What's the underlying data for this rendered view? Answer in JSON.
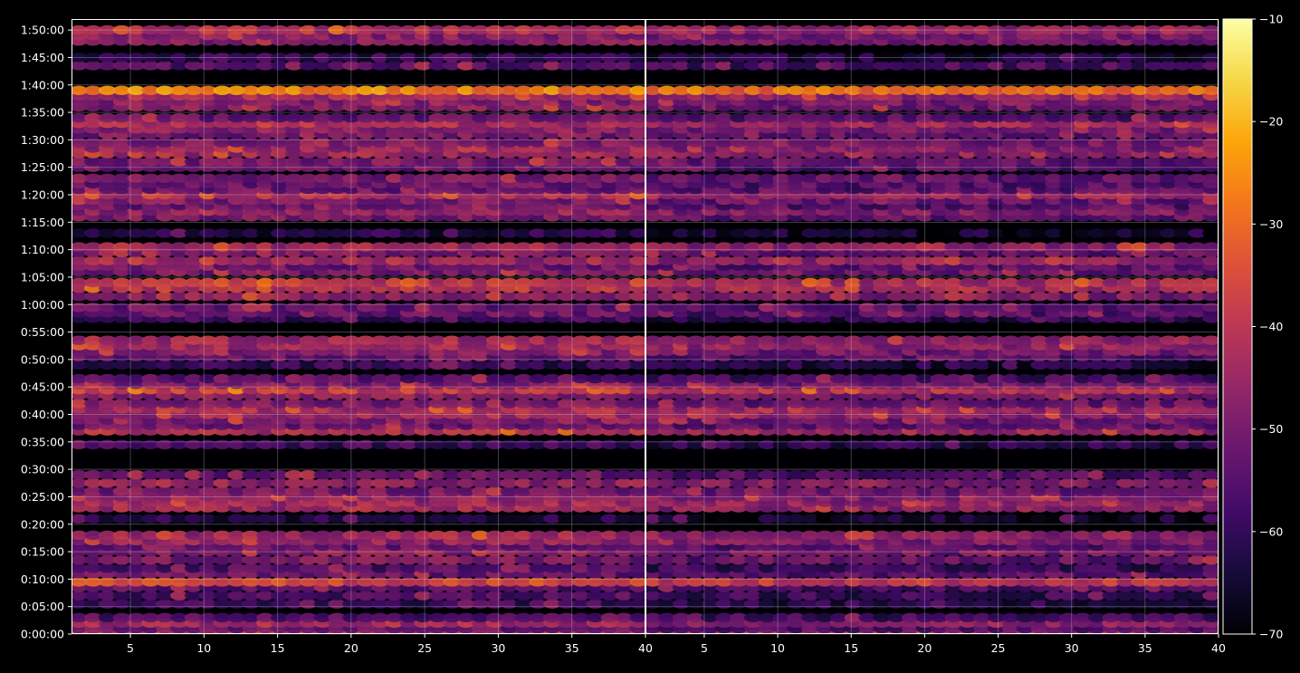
{
  "chart_data": {
    "type": "heatmap",
    "title": "",
    "xlabel": "",
    "ylabel": "",
    "panels": [
      {
        "name": "",
        "xlim": [
          1,
          40
        ],
        "x_ticks": [
          "5",
          "10",
          "15",
          "20",
          "25",
          "30",
          "35",
          "40"
        ],
        "x_tick_values": [
          5,
          10,
          15,
          20,
          25,
          30,
          35,
          40
        ]
      },
      {
        "name": "",
        "xlim": [
          1,
          40
        ],
        "x_ticks": [
          "5",
          "10",
          "15",
          "20",
          "25",
          "30",
          "35",
          "40"
        ],
        "x_tick_values": [
          5,
          10,
          15,
          20,
          25,
          30,
          35,
          40
        ]
      }
    ],
    "ylim_seconds": [
      0,
      6720
    ],
    "y_ticks": [
      "0:00:00",
      "0:05:00",
      "0:10:00",
      "0:15:00",
      "0:20:00",
      "0:25:00",
      "0:30:00",
      "0:35:00",
      "0:40:00",
      "0:45:00",
      "0:50:00",
      "0:55:00",
      "1:00:00",
      "1:05:00",
      "1:10:00",
      "1:15:00",
      "1:20:00",
      "1:25:00",
      "1:30:00",
      "1:35:00",
      "1:40:00",
      "1:45:00",
      "1:50:00"
    ],
    "grid": true,
    "colormap": "inferno",
    "colorbar": {
      "range": [
        -70,
        -10
      ],
      "ticks": [
        "−70",
        "−60",
        "−50",
        "−40",
        "−30",
        "−20",
        "−10"
      ],
      "tick_values": [
        -70,
        -60,
        -50,
        -40,
        -30,
        -20,
        -10
      ]
    },
    "bands_level_dB": [
      {
        "t": "0:00:00",
        "level": -38
      },
      {
        "t": "0:01:00",
        "level": -52
      },
      {
        "t": "0:02:00",
        "level": -44
      },
      {
        "t": "0:03:00",
        "level": -55
      },
      {
        "t": "0:05:30",
        "level": -58
      },
      {
        "t": "0:07:00",
        "level": -56
      },
      {
        "t": "0:08:30",
        "level": -54
      },
      {
        "t": "0:09:30",
        "level": -36
      },
      {
        "t": "0:11:00",
        "level": -52
      },
      {
        "t": "0:12:00",
        "level": -56
      },
      {
        "t": "0:13:30",
        "level": -50
      },
      {
        "t": "0:15:00",
        "level": -48
      },
      {
        "t": "0:16:00",
        "level": -52
      },
      {
        "t": "0:17:00",
        "level": -46
      },
      {
        "t": "0:18:00",
        "level": -44
      },
      {
        "t": "0:21:00",
        "level": -62
      },
      {
        "t": "0:23:00",
        "level": -44
      },
      {
        "t": "0:24:00",
        "level": -44
      },
      {
        "t": "0:25:00",
        "level": -46
      },
      {
        "t": "0:26:00",
        "level": -50
      },
      {
        "t": "0:27:30",
        "level": -46
      },
      {
        "t": "0:29:00",
        "level": -52
      },
      {
        "t": "0:34:30",
        "level": -58
      },
      {
        "t": "0:37:00",
        "level": -42
      },
      {
        "t": "0:38:00",
        "level": -52
      },
      {
        "t": "0:39:00",
        "level": -48
      },
      {
        "t": "0:40:00",
        "level": -44
      },
      {
        "t": "0:41:00",
        "level": -42
      },
      {
        "t": "0:42:00",
        "level": -50
      },
      {
        "t": "0:43:30",
        "level": -48
      },
      {
        "t": "0:44:30",
        "level": -38
      },
      {
        "t": "0:45:30",
        "level": -48
      },
      {
        "t": "0:46:30",
        "level": -54
      },
      {
        "t": "0:49:00",
        "level": -60
      },
      {
        "t": "0:50:30",
        "level": -52
      },
      {
        "t": "0:51:30",
        "level": -48
      },
      {
        "t": "0:52:30",
        "level": -44
      },
      {
        "t": "0:53:30",
        "level": -44
      },
      {
        "t": "0:57:30",
        "level": -58
      },
      {
        "t": "0:58:30",
        "level": -52
      },
      {
        "t": "0:59:30",
        "level": -52
      },
      {
        "t": "1:01:30",
        "level": -46
      },
      {
        "t": "1:03:00",
        "level": -40
      },
      {
        "t": "1:04:00",
        "level": -40
      },
      {
        "t": "1:06:00",
        "level": -50
      },
      {
        "t": "1:07:00",
        "level": -52
      },
      {
        "t": "1:08:00",
        "level": -44
      },
      {
        "t": "1:09:30",
        "level": -50
      },
      {
        "t": "1:10:30",
        "level": -44
      },
      {
        "t": "1:13:00",
        "level": -62
      },
      {
        "t": "1:16:00",
        "level": -50
      },
      {
        "t": "1:17:00",
        "level": -46
      },
      {
        "t": "1:18:00",
        "level": -52
      },
      {
        "t": "1:19:00",
        "level": -50
      },
      {
        "t": "1:20:00",
        "level": -42
      },
      {
        "t": "1:21:00",
        "level": -52
      },
      {
        "t": "1:22:00",
        "level": -52
      },
      {
        "t": "1:23:00",
        "level": -50
      },
      {
        "t": "1:25:00",
        "level": -52
      },
      {
        "t": "1:26:00",
        "level": -50
      },
      {
        "t": "1:27:30",
        "level": -44
      },
      {
        "t": "1:28:30",
        "level": -46
      },
      {
        "t": "1:29:30",
        "level": -48
      },
      {
        "t": "1:31:00",
        "level": -50
      },
      {
        "t": "1:32:00",
        "level": -48
      },
      {
        "t": "1:33:00",
        "level": -42
      },
      {
        "t": "1:34:00",
        "level": -52
      },
      {
        "t": "1:36:00",
        "level": -48
      },
      {
        "t": "1:37:00",
        "level": -48
      },
      {
        "t": "1:38:00",
        "level": -44
      },
      {
        "t": "1:39:00",
        "level": -26
      },
      {
        "t": "1:43:30",
        "level": -54
      },
      {
        "t": "1:45:00",
        "level": -60
      },
      {
        "t": "1:48:00",
        "level": -48
      },
      {
        "t": "1:49:00",
        "level": -48
      },
      {
        "t": "1:50:00",
        "level": -42
      }
    ]
  }
}
